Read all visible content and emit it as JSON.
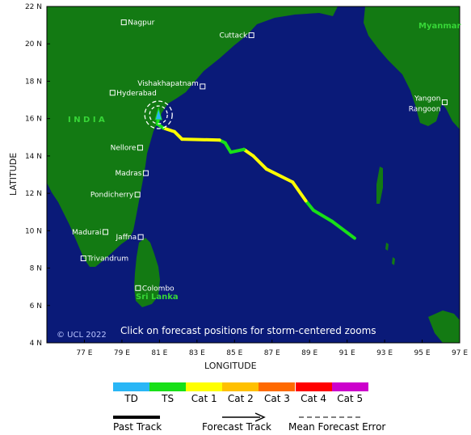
{
  "map": {
    "lat_labels": [
      "22 N",
      "20 N",
      "18 N",
      "16 N",
      "14 N",
      "12 N",
      "10 N",
      "8 N",
      "6 N",
      "4 N"
    ],
    "lon_labels": [
      "77 E",
      "79 E",
      "81 E",
      "83 E",
      "85 E",
      "87 E",
      "89 E",
      "91 E",
      "93 E",
      "95 E",
      "97 E"
    ],
    "x_axis_label": "LONGITUDE",
    "y_axis_label": "LATITUDE",
    "cities": [
      {
        "name": "Nagpur",
        "lon": 79.1,
        "lat": 21.15
      },
      {
        "name": "Cuttack",
        "lon": 85.9,
        "lat": 20.46
      },
      {
        "name": "Vishakhapatnam",
        "lon": 83.3,
        "lat": 17.72
      },
      {
        "name": "Hyderabad",
        "lon": 78.5,
        "lat": 17.38
      },
      {
        "name": "Nellore",
        "lon": 79.97,
        "lat": 14.44
      },
      {
        "name": "Madras",
        "lon": 80.27,
        "lat": 13.08
      },
      {
        "name": "Pondicherry",
        "lon": 79.83,
        "lat": 11.93
      },
      {
        "name": "Madurai",
        "lon": 78.12,
        "lat": 9.93
      },
      {
        "name": "Jaffna",
        "lon": 80.0,
        "lat": 9.66
      },
      {
        "name": "Trivandrum",
        "lon": 76.95,
        "lat": 8.52
      },
      {
        "name": "Colombo",
        "lon": 79.86,
        "lat": 6.93
      },
      {
        "name": "Yangon",
        "lon": 96.2,
        "lat": 16.87
      },
      {
        "name": "Rangoon",
        "lon": 96.2,
        "lat": 16.87
      }
    ],
    "region_labels": {
      "india": "I N D I A",
      "sri_lanka": "Sri Lanka",
      "myanmar": "Myanmar"
    },
    "copyright": "© UCL 2022",
    "instruction": "Click on forecast positions for storm-centered zooms",
    "track": [
      {
        "lon": 91.4,
        "lat": 9.6,
        "cat": "TS"
      },
      {
        "lon": 90.2,
        "lat": 10.5,
        "cat": "TS"
      },
      {
        "lon": 89.2,
        "lat": 11.1,
        "cat": "TS"
      },
      {
        "lon": 88.8,
        "lat": 11.6,
        "cat": "Cat 1"
      },
      {
        "lon": 88.1,
        "lat": 12.6,
        "cat": "Cat 1"
      },
      {
        "lon": 86.7,
        "lat": 13.3,
        "cat": "Cat 1"
      },
      {
        "lon": 86.0,
        "lat": 14.0,
        "cat": "Cat 1"
      },
      {
        "lon": 85.5,
        "lat": 14.35,
        "cat": "TS"
      },
      {
        "lon": 84.8,
        "lat": 14.2,
        "cat": "TS"
      },
      {
        "lon": 84.5,
        "lat": 14.7,
        "cat": "TS"
      },
      {
        "lon": 84.2,
        "lat": 14.85,
        "cat": "Cat 1"
      },
      {
        "lon": 82.2,
        "lat": 14.9,
        "cat": "Cat 1"
      },
      {
        "lon": 81.8,
        "lat": 15.3,
        "cat": "Cat 1"
      },
      {
        "lon": 81.2,
        "lat": 15.5,
        "cat": "TS"
      },
      {
        "lon": 80.9,
        "lat": 15.7,
        "cat": "TS"
      },
      {
        "lon": 80.95,
        "lat": 16.1,
        "cat": "TS"
      }
    ],
    "storm_center": {
      "lon": 80.95,
      "lat": 16.2
    }
  },
  "legend": {
    "categories": [
      {
        "label": "TD",
        "color": "#29b6f6"
      },
      {
        "label": "TS",
        "color": "#18e018"
      },
      {
        "label": "Cat 1",
        "color": "#ffff00"
      },
      {
        "label": "Cat 2",
        "color": "#ffc000"
      },
      {
        "label": "Cat 3",
        "color": "#ff6a00"
      },
      {
        "label": "Cat 4",
        "color": "#ff0000"
      },
      {
        "label": "Cat 5",
        "color": "#cc00cc"
      }
    ],
    "past_track": "Past Track",
    "forecast_track": "Forecast Track",
    "mean_error": "Mean Forecast Error"
  },
  "colors": {
    "ocean": "#0a1a78",
    "land": "#137a13",
    "border": "#000000"
  }
}
